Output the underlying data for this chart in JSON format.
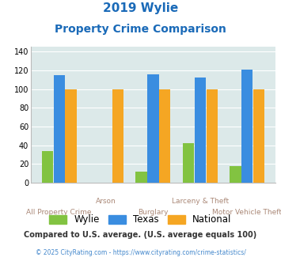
{
  "title_line1": "2019 Wylie",
  "title_line2": "Property Crime Comparison",
  "title_color": "#1a6ab8",
  "categories": [
    "All Property Crime",
    "Arson",
    "Burglary",
    "Larceny & Theft",
    "Motor Vehicle Theft"
  ],
  "wylie": [
    34,
    0,
    12,
    42,
    18
  ],
  "texas": [
    115,
    0,
    116,
    112,
    121
  ],
  "national": [
    100,
    100,
    100,
    100,
    100
  ],
  "wylie_color": "#82c341",
  "texas_color": "#3a8de0",
  "national_color": "#f5a623",
  "bg_color": "#dce9e9",
  "ylim": [
    0,
    145
  ],
  "yticks": [
    0,
    20,
    40,
    60,
    80,
    100,
    120,
    140
  ],
  "footnote1": "Compared to U.S. average. (U.S. average equals 100)",
  "footnote2": "© 2025 CityRating.com - https://www.cityrating.com/crime-statistics/",
  "footnote1_color": "#333333",
  "footnote2_color": "#4488cc",
  "xlabel_color": "#aa8877"
}
